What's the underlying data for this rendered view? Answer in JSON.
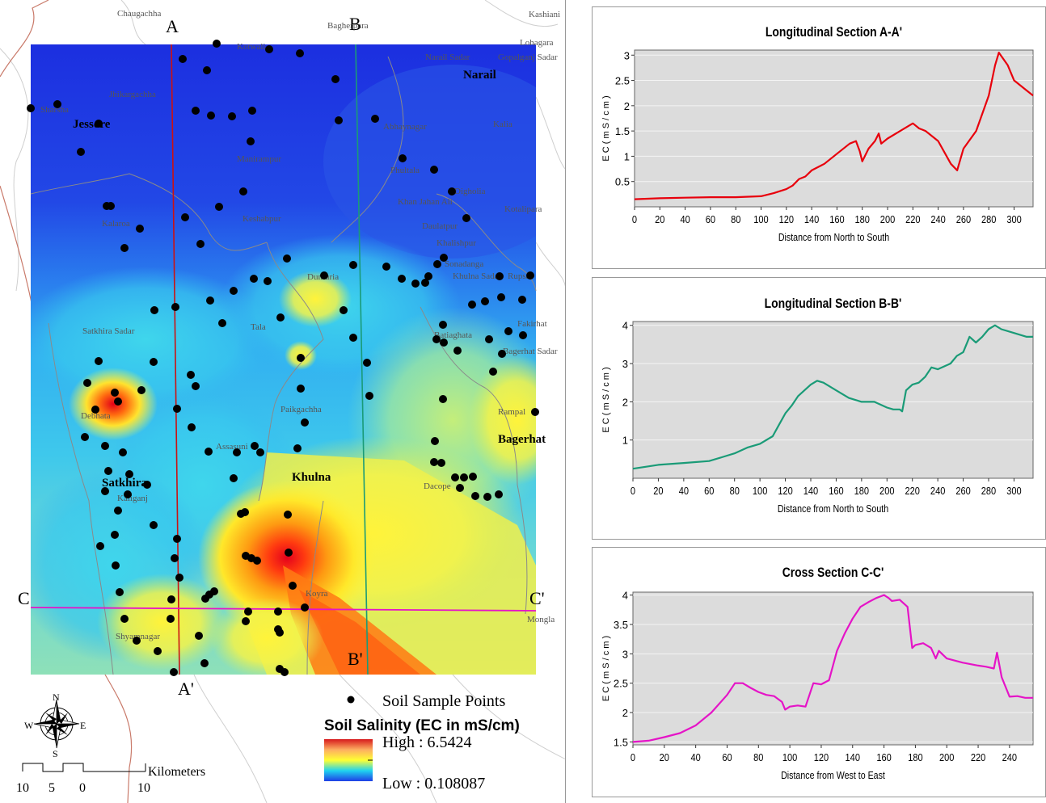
{
  "map": {
    "section_letters": {
      "a_top": "A",
      "a_bottom": "A'",
      "b_top": "B",
      "b_bottom": "B'",
      "c_left": "C",
      "c_right": "C'"
    },
    "place_labels": [
      {
        "key": "chaugachha",
        "text": "Chaugachha"
      },
      {
        "key": "bagherpara",
        "text": "Bagherpara"
      },
      {
        "key": "kashiani",
        "text": "Kashiani"
      },
      {
        "key": "lohagara",
        "text": "Lohagara"
      },
      {
        "key": "kotwali",
        "text": "Kotwali"
      },
      {
        "key": "narail_sadar",
        "text": "Narail Sadar"
      },
      {
        "key": "gopalganj_sadar",
        "text": "Gopalganj Sadar"
      },
      {
        "key": "narail",
        "text": "Narail"
      },
      {
        "key": "sharsha",
        "text": "Sharsha"
      },
      {
        "key": "jhikargachha",
        "text": "Jhikargachha"
      },
      {
        "key": "jessore",
        "text": "Jessore"
      },
      {
        "key": "abhaynagar",
        "text": "Abhaynagar"
      },
      {
        "key": "kalia",
        "text": "Kalia"
      },
      {
        "key": "manirampur",
        "text": "Manirampur"
      },
      {
        "key": "phultala",
        "text": "Phultala"
      },
      {
        "key": "digholia",
        "text": "Digholia"
      },
      {
        "key": "khan_jahan_ali",
        "text": "Khan Jahan Ali"
      },
      {
        "key": "kotalipara",
        "text": "Kotalipara"
      },
      {
        "key": "kalaroa",
        "text": "Kalaroa"
      },
      {
        "key": "keshabpur",
        "text": "Keshabpur"
      },
      {
        "key": "daulatpur",
        "text": "Daulatpur"
      },
      {
        "key": "khalishpur",
        "text": "Khalishpur"
      },
      {
        "key": "sonadanga",
        "text": "Sonadanga"
      },
      {
        "key": "khulna_sadar",
        "text": "Khulna Sadar"
      },
      {
        "key": "rupsa",
        "text": "Rupsa"
      },
      {
        "key": "dumuria",
        "text": "Dumuria"
      },
      {
        "key": "tala",
        "text": "Tala"
      },
      {
        "key": "satkhira_sadar",
        "text": "Satkhira Sadar"
      },
      {
        "key": "batiaghata",
        "text": "Batiaghata"
      },
      {
        "key": "fakirhat",
        "text": "Fakirhat"
      },
      {
        "key": "bagerhat_sadar",
        "text": "Bagerhat Sadar"
      },
      {
        "key": "debhata",
        "text": "Debhata"
      },
      {
        "key": "paikgachha",
        "text": "Paikgachha"
      },
      {
        "key": "rampal",
        "text": "Rampal"
      },
      {
        "key": "bagerhat",
        "text": "Bagerhat"
      },
      {
        "key": "assasuni",
        "text": "Assasuni"
      },
      {
        "key": "satkhira",
        "text": "Satkhira"
      },
      {
        "key": "khulna",
        "text": "Khulna"
      },
      {
        "key": "dacope",
        "text": "Dacope"
      },
      {
        "key": "kaliganj",
        "text": "Kaliganj"
      },
      {
        "key": "koyra",
        "text": "Koyra"
      },
      {
        "key": "mongla",
        "text": "Mongla"
      },
      {
        "key": "shyamnagar",
        "text": "Shyamnagar"
      }
    ],
    "legend": {
      "points_label": "Soil Sample Points",
      "salinity_title": "Soil Salinity (EC in mS/cm)",
      "high_label": "High : 6.5424",
      "low_label": "Low : 0.108087",
      "ramp_colors": [
        "#d7191c",
        "#fdae61",
        "#ffff33",
        "#1fd3f0",
        "#1f3ee6"
      ]
    },
    "north_arrow": {
      "n": "N",
      "s": "S",
      "e": "E",
      "w": "W"
    },
    "scale_bar": {
      "unit": "Kilometers",
      "ticks": [
        "10",
        "5",
        "0",
        "10"
      ]
    }
  },
  "charts": {
    "longitudinal_a": {
      "type": "line",
      "title": "Longitudinal Section A-A'",
      "xlabel": "Distance from North to South",
      "ylabel": "E C  ( m S / c m )",
      "color": "#e8000c",
      "xlim": [
        0,
        315
      ],
      "ylim": [
        0,
        3.1
      ],
      "xticks": [
        "0",
        "20",
        "40",
        "60",
        "80",
        "100",
        "120",
        "140",
        "160",
        "180",
        "200",
        "220",
        "240",
        "260",
        "280",
        "300"
      ],
      "yticks": [
        "0.5",
        "1",
        "1.5",
        "2",
        "2.5",
        "3"
      ],
      "x": [
        0,
        10,
        20,
        40,
        60,
        80,
        100,
        110,
        120,
        125,
        130,
        135,
        140,
        150,
        160,
        170,
        175,
        178,
        180,
        185,
        190,
        193,
        195,
        200,
        210,
        220,
        225,
        230,
        240,
        250,
        255,
        260,
        270,
        280,
        285,
        288,
        295,
        300,
        310,
        315
      ],
      "y": [
        0.15,
        0.16,
        0.17,
        0.18,
        0.19,
        0.19,
        0.21,
        0.27,
        0.35,
        0.42,
        0.55,
        0.6,
        0.72,
        0.85,
        1.05,
        1.25,
        1.3,
        1.1,
        0.9,
        1.15,
        1.3,
        1.45,
        1.25,
        1.35,
        1.5,
        1.65,
        1.55,
        1.5,
        1.3,
        0.85,
        0.72,
        1.15,
        1.5,
        2.2,
        2.8,
        3.05,
        2.8,
        2.5,
        2.3,
        2.2
      ]
    },
    "longitudinal_b": {
      "type": "line",
      "title": "Longitudinal Section B-B'",
      "xlabel": "Distance from North to South",
      "ylabel": "E C  ( m S / c m )",
      "color": "#1a9b77",
      "xlim": [
        0,
        315
      ],
      "ylim": [
        0,
        4.1
      ],
      "xticks": [
        "0",
        "20",
        "40",
        "60",
        "80",
        "100",
        "120",
        "140",
        "160",
        "180",
        "200",
        "220",
        "240",
        "260",
        "280",
        "300"
      ],
      "yticks": [
        "1",
        "2",
        "3",
        "4"
      ],
      "x": [
        0,
        10,
        20,
        40,
        60,
        70,
        80,
        90,
        100,
        110,
        115,
        120,
        125,
        130,
        140,
        145,
        150,
        160,
        170,
        180,
        190,
        200,
        205,
        210,
        212,
        215,
        220,
        225,
        230,
        235,
        240,
        250,
        255,
        260,
        265,
        270,
        275,
        280,
        285,
        290,
        300,
        310,
        315
      ],
      "y": [
        0.25,
        0.3,
        0.35,
        0.4,
        0.45,
        0.55,
        0.65,
        0.8,
        0.9,
        1.1,
        1.4,
        1.7,
        1.9,
        2.15,
        2.45,
        2.55,
        2.5,
        2.3,
        2.1,
        2.0,
        2.0,
        1.85,
        1.8,
        1.8,
        1.75,
        2.3,
        2.45,
        2.5,
        2.65,
        2.9,
        2.85,
        3.0,
        3.2,
        3.3,
        3.7,
        3.55,
        3.7,
        3.9,
        4.0,
        3.9,
        3.8,
        3.7,
        3.7
      ]
    },
    "cross_c": {
      "type": "line",
      "title": "Cross Section C-C'",
      "xlabel": "Distance from West to East",
      "ylabel": "E C  ( m S / c m )",
      "color": "#e514c7",
      "xlim": [
        0,
        255
      ],
      "ylim": [
        1.45,
        4.05
      ],
      "xticks": [
        "0",
        "20",
        "40",
        "60",
        "80",
        "100",
        "120",
        "140",
        "160",
        "180",
        "200",
        "220",
        "240"
      ],
      "yticks": [
        "1.5",
        "2",
        "2.5",
        "3",
        "3.5",
        "4"
      ],
      "x": [
        0,
        10,
        20,
        30,
        40,
        50,
        60,
        65,
        70,
        75,
        80,
        85,
        90,
        95,
        97,
        100,
        105,
        110,
        115,
        120,
        125,
        130,
        135,
        140,
        145,
        150,
        155,
        160,
        163,
        165,
        170,
        175,
        178,
        180,
        185,
        190,
        193,
        195,
        200,
        210,
        220,
        225,
        230,
        232,
        235,
        240,
        245,
        250,
        255
      ],
      "y": [
        1.5,
        1.52,
        1.58,
        1.65,
        1.78,
        2.0,
        2.3,
        2.5,
        2.5,
        2.42,
        2.35,
        2.3,
        2.28,
        2.18,
        2.05,
        2.1,
        2.12,
        2.1,
        2.5,
        2.48,
        2.55,
        3.05,
        3.35,
        3.6,
        3.8,
        3.88,
        3.95,
        4.0,
        3.95,
        3.9,
        3.92,
        3.8,
        3.1,
        3.15,
        3.18,
        3.1,
        2.92,
        3.05,
        2.92,
        2.85,
        2.8,
        2.78,
        2.75,
        3.02,
        2.6,
        2.27,
        2.28,
        2.25,
        2.25
      ]
    }
  }
}
